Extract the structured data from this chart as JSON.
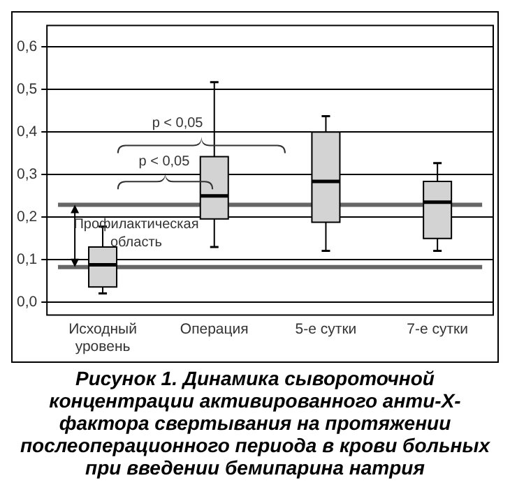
{
  "chart_data": {
    "type": "box",
    "title": "Рисунок 1. Динамика сывороточной концентрации активированного анти-Х-фактора свертывания на протяжении послеоперационного периода в крови больных при введении бемипарина натрия",
    "categories": [
      "Исходный уровень",
      "Операция",
      "5-е сутки",
      "7-е сутки"
    ],
    "color": "#d3d3d3",
    "boxes": [
      {
        "low": 0.021,
        "q1": 0.036,
        "median": 0.088,
        "q3": 0.13,
        "high": 0.178
      },
      {
        "low": 0.13,
        "q1": 0.196,
        "median": 0.25,
        "q3": 0.342,
        "high": 0.517
      },
      {
        "low": 0.121,
        "q1": 0.188,
        "median": 0.284,
        "q3": 0.4,
        "high": 0.437
      },
      {
        "low": 0.121,
        "q1": 0.15,
        "median": 0.235,
        "q3": 0.284,
        "high": 0.327
      }
    ],
    "ylim": [
      -0.03,
      0.65
    ],
    "yticks": [
      {
        "value": 0,
        "label": "0,0"
      },
      {
        "value": 0.1,
        "label": "0,1"
      },
      {
        "value": 0.2,
        "label": "0,2"
      },
      {
        "value": 0.3,
        "label": "0,3"
      },
      {
        "value": 0.4,
        "label": "0,4"
      },
      {
        "value": 0.5,
        "label": "0,5"
      },
      {
        "value": 0.6,
        "label": "0,6"
      }
    ],
    "grid": "y",
    "ref_lines": [
      {
        "axis": "y",
        "value": 0.229,
        "color": "#666666"
      },
      {
        "axis": "y",
        "value": 0.083,
        "color": "#666666"
      }
    ],
    "annotations": [
      "p < 0,05",
      "p < 0,05",
      "Профилактическая область"
    ]
  }
}
